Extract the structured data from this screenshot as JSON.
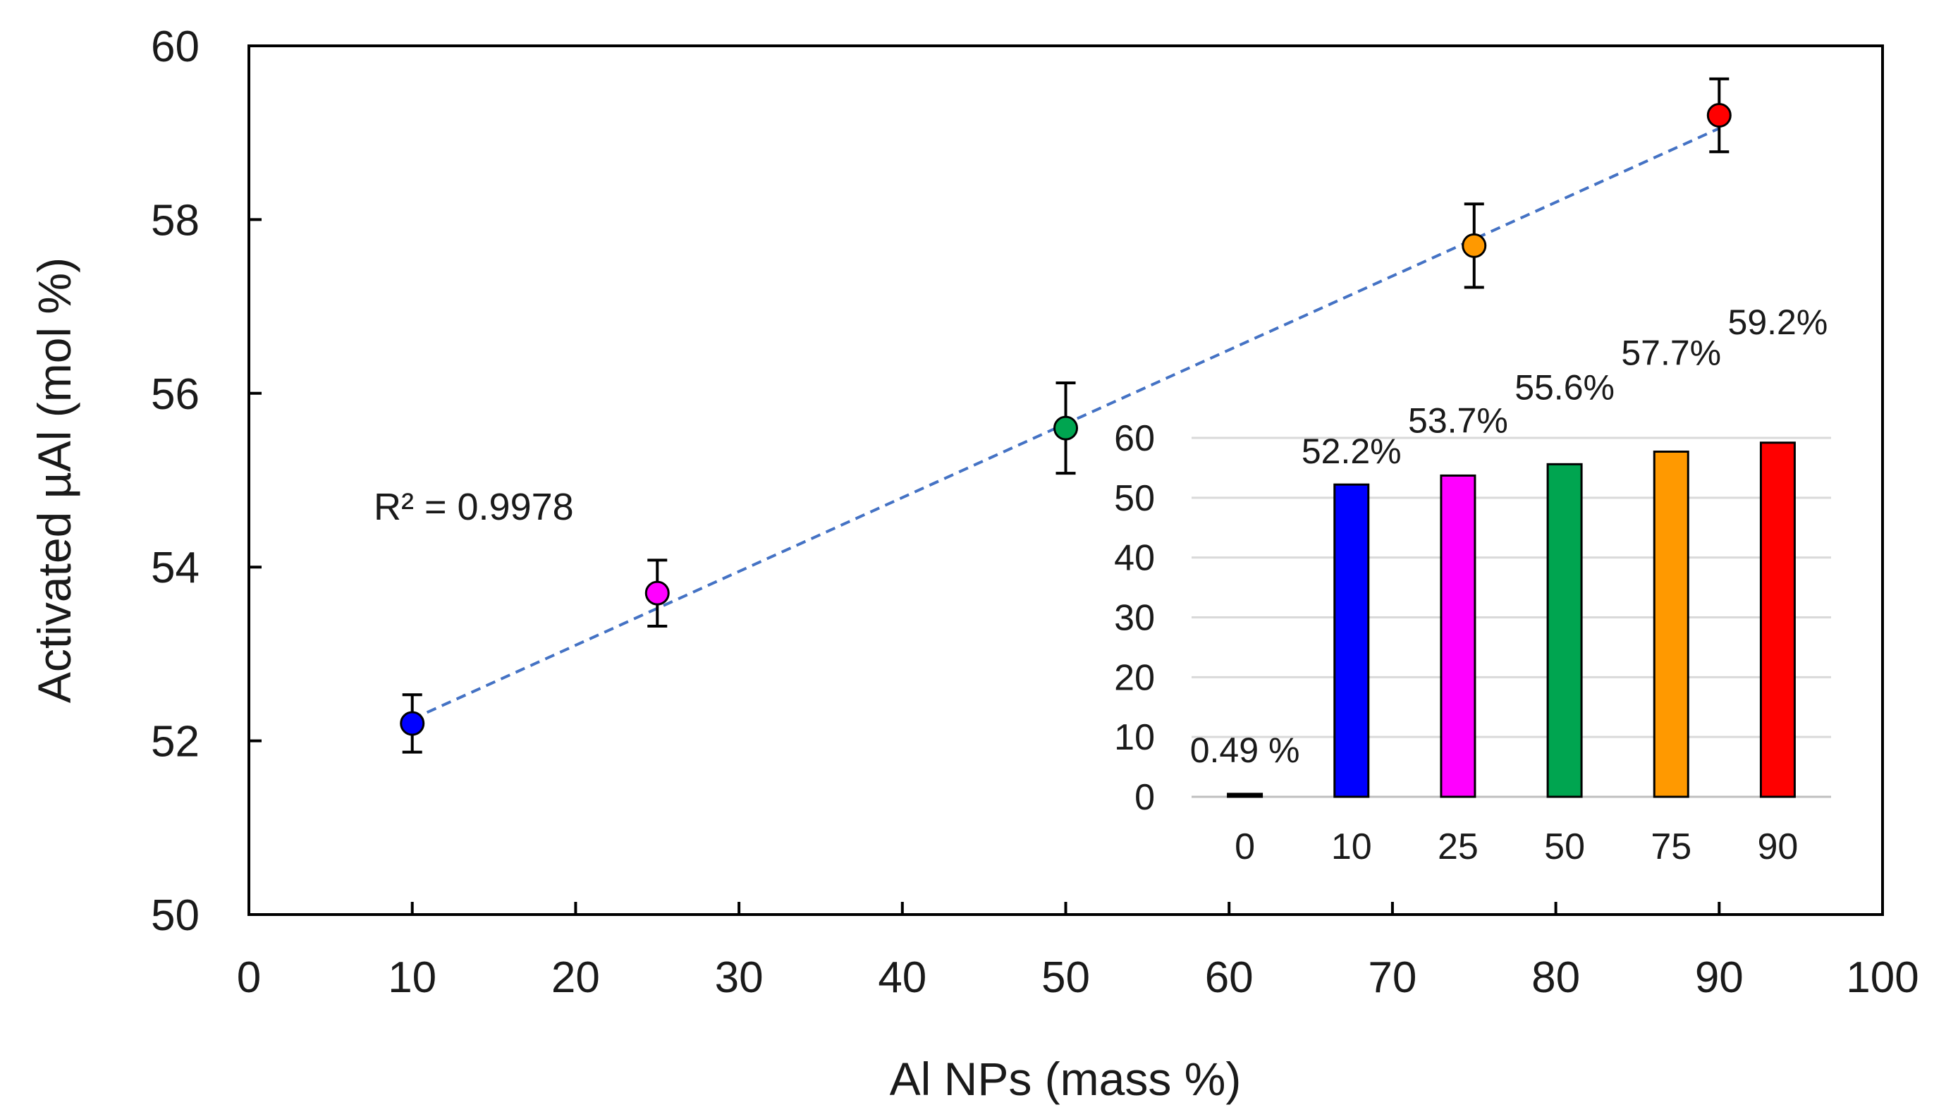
{
  "chart_data": [
    {
      "type": "scatter",
      "title": "",
      "xlabel": "Al NPs (mass %)",
      "ylabel": "Activated µAl (mol %)",
      "xlim": [
        0,
        100
      ],
      "ylim": [
        50,
        60
      ],
      "xticks": [
        0,
        10,
        20,
        30,
        40,
        50,
        60,
        70,
        80,
        90,
        100
      ],
      "yticks": [
        50,
        52,
        54,
        56,
        58,
        60
      ],
      "series": [
        {
          "name": "Activated µAl",
          "x": [
            10,
            25,
            50,
            75,
            90
          ],
          "y": [
            52.2,
            53.7,
            55.6,
            57.7,
            59.2
          ],
          "yerr": [
            0.33,
            0.38,
            0.52,
            0.48,
            0.42
          ],
          "colors": [
            "#0000ff",
            "#ff00ff",
            "#00a550",
            "#ff9900",
            "#ff0000"
          ]
        }
      ],
      "trendline": {
        "type": "linear",
        "x_range": [
          10,
          90
        ],
        "y_range": [
          52.25,
          59.05
        ],
        "style": "dashed",
        "color": "#4472c4",
        "annotation": "R² = 0.9978"
      },
      "grid": false
    },
    {
      "type": "bar",
      "inset": true,
      "categories": [
        "0",
        "10",
        "25",
        "50",
        "75",
        "90"
      ],
      "values": [
        0.49,
        52.2,
        53.7,
        55.6,
        57.7,
        59.2
      ],
      "data_labels": [
        "0.49 %",
        "52.2%",
        "53.7%",
        "55.6%",
        "57.7%",
        "59.2%"
      ],
      "colors": [
        "#000000",
        "#0000ff",
        "#ff00ff",
        "#00a550",
        "#ff9900",
        "#ff0000"
      ],
      "ylim": [
        0,
        60
      ],
      "yticks": [
        0,
        10,
        20,
        30,
        40,
        50,
        60
      ],
      "grid": true,
      "grid_color": "#d9d9d9"
    }
  ]
}
